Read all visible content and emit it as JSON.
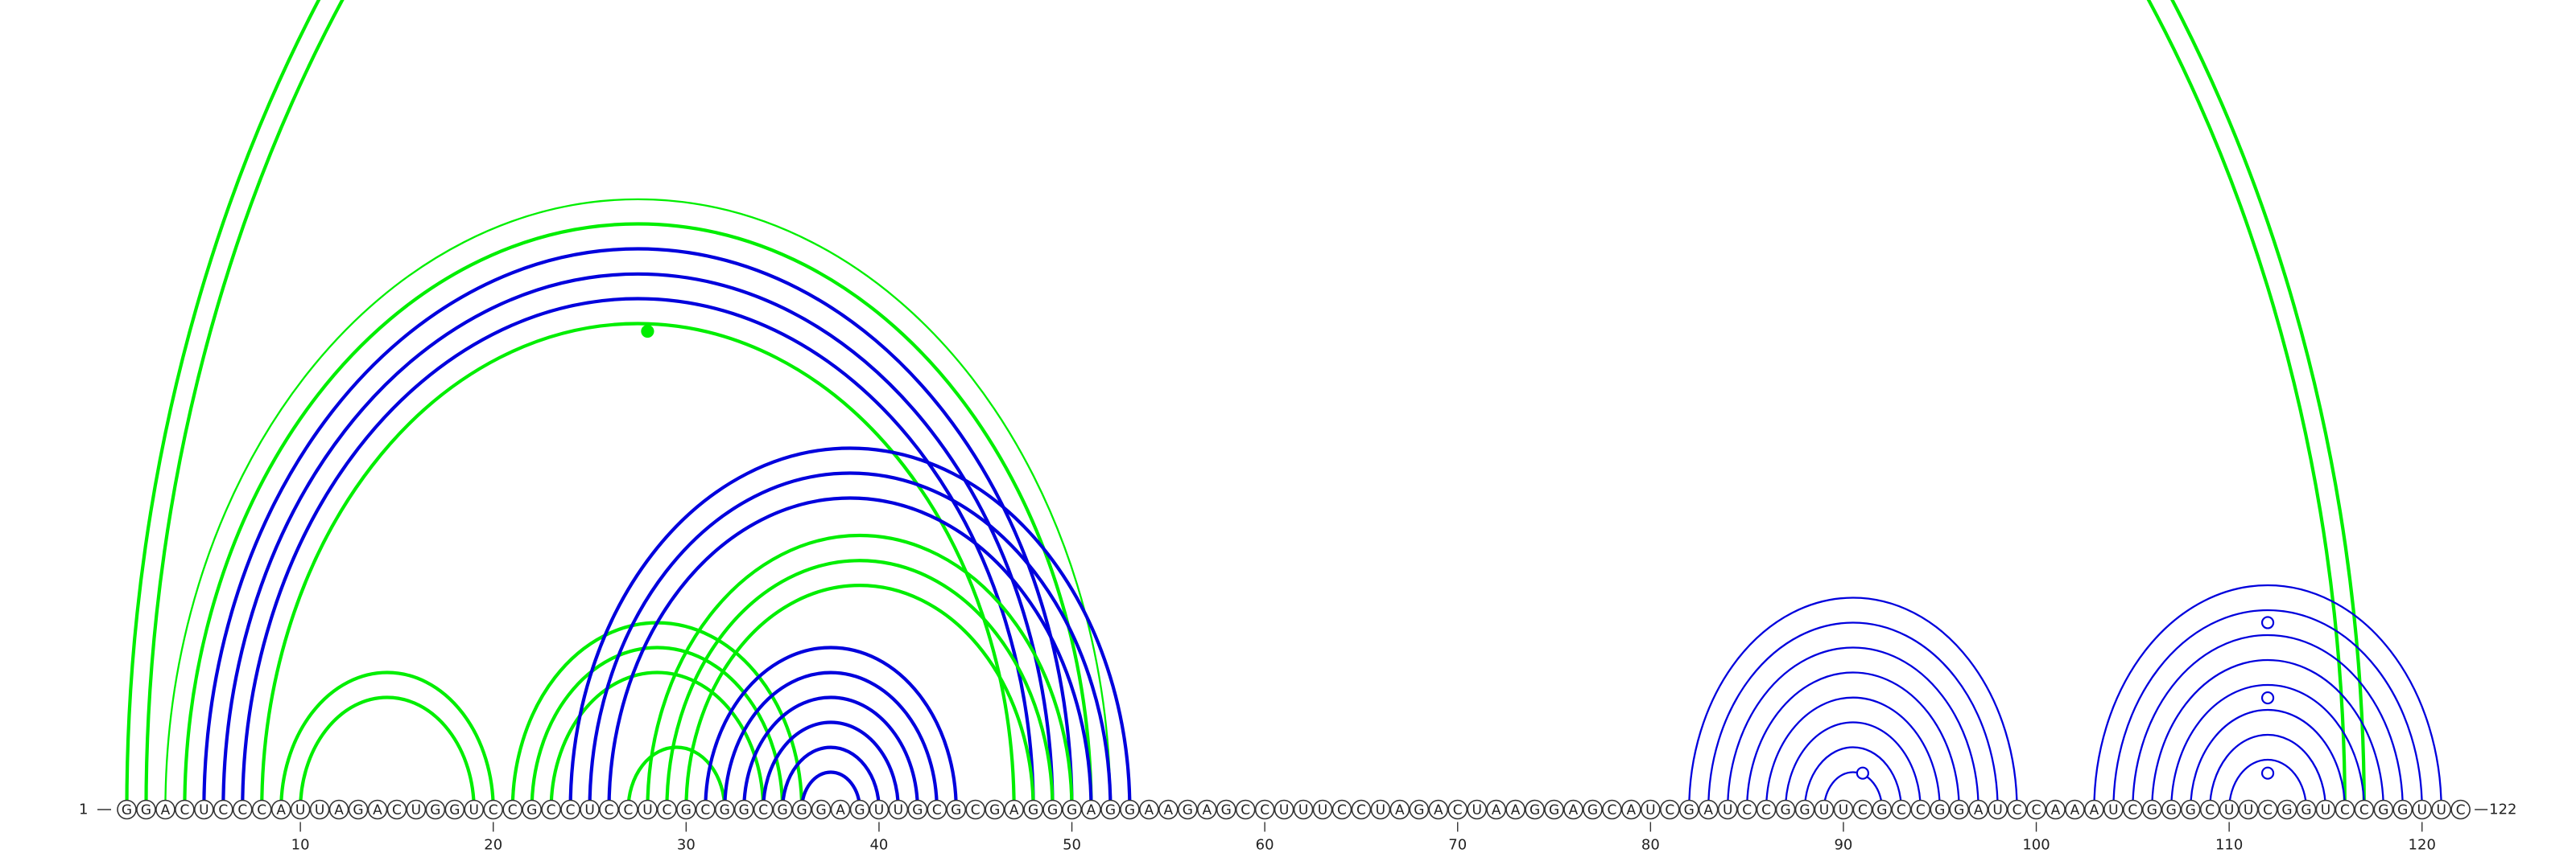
{
  "sequence": "GGACUCCCAUUAGACUGGUCCGCCUCCUCGCGGCGGGAGUUGCGCGAGGGAGGAAGAGCCUUUCCUAGACUAAGGAGCAUCGAUCCGGUUCGCCGGAUCCAAAUCGGGCUUCGGUCCGGUUC",
  "start_label": "1",
  "end_label": "122",
  "ticks": [
    10,
    20,
    30,
    40,
    50,
    60,
    70,
    80,
    90,
    100,
    110,
    120
  ],
  "colors": {
    "green": "#00ee00",
    "blue": "#0000dd",
    "outline": "#333333"
  },
  "arc_groups": [
    {
      "color": "green",
      "heavy": true,
      "pairs": [
        [
          1,
          117
        ],
        [
          2,
          116
        ]
      ]
    },
    {
      "color": "green",
      "heavy": false,
      "pairs": [
        [
          3,
          52
        ]
      ]
    },
    {
      "color": "green",
      "heavy": true,
      "pairs": [
        [
          4,
          51
        ]
      ]
    },
    {
      "color": "blue",
      "heavy": true,
      "pairs": [
        [
          5,
          50
        ],
        [
          6,
          49
        ],
        [
          7,
          48
        ]
      ]
    },
    {
      "color": "green",
      "heavy": true,
      "pairs": [
        [
          8,
          47
        ]
      ]
    },
    {
      "color": "green",
      "heavy": true,
      "pairs": [
        [
          9,
          20
        ],
        [
          10,
          19
        ]
      ]
    },
    {
      "color": "green",
      "heavy": true,
      "pairs": [
        [
          21,
          36
        ],
        [
          22,
          35
        ],
        [
          23,
          34
        ],
        [
          27,
          32
        ]
      ]
    },
    {
      "color": "blue",
      "heavy": true,
      "pairs": [
        [
          24,
          53
        ],
        [
          25,
          52
        ],
        [
          26,
          51
        ]
      ]
    },
    {
      "color": "green",
      "heavy": true,
      "pairs": [
        [
          28,
          50
        ],
        [
          29,
          49
        ],
        [
          30,
          48
        ]
      ]
    },
    {
      "color": "blue",
      "heavy": true,
      "pairs": [
        [
          31,
          44
        ],
        [
          32,
          43
        ],
        [
          33,
          42
        ],
        [
          34,
          41
        ],
        [
          35,
          40
        ],
        [
          36,
          39
        ]
      ]
    },
    {
      "color": "blue",
      "heavy": false,
      "pairs": [
        [
          82,
          99
        ],
        [
          83,
          98
        ],
        [
          84,
          97
        ],
        [
          85,
          96
        ],
        [
          86,
          95
        ],
        [
          87,
          94
        ],
        [
          88,
          93
        ],
        [
          89,
          92
        ]
      ]
    },
    {
      "color": "blue",
      "heavy": false,
      "pairs": [
        [
          103,
          121
        ],
        [
          104,
          120
        ],
        [
          105,
          119
        ],
        [
          106,
          118
        ],
        [
          107,
          117
        ],
        [
          108,
          116
        ],
        [
          109,
          115
        ],
        [
          110,
          114
        ]
      ]
    }
  ],
  "markers": [
    {
      "at": 28,
      "height": 197,
      "color": "green",
      "filled": true
    },
    {
      "at": 91,
      "height": 15,
      "color": "blue",
      "filled": false
    },
    {
      "at": 112,
      "height": 15,
      "color": "blue",
      "filled": false
    },
    {
      "at": 112,
      "height": 46,
      "color": "blue",
      "filled": false
    },
    {
      "at": 112,
      "height": 77,
      "color": "blue",
      "filled": false
    }
  ]
}
